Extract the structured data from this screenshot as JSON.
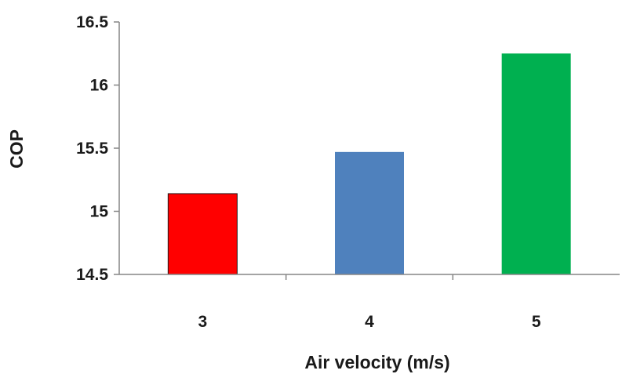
{
  "chart_data": {
    "type": "bar",
    "title": "",
    "xlabel": "Air velocity (m/s)",
    "ylabel": "COP",
    "categories": [
      "3",
      "4",
      "5"
    ],
    "values": [
      15.14,
      15.47,
      16.25
    ],
    "bar_colors": [
      "#ff0000",
      "#4f81bd",
      "#00b050"
    ],
    "ylim": [
      14.5,
      16.5
    ],
    "yticks": [
      "14.5",
      "15",
      "15.5",
      "16",
      "16.5"
    ],
    "grid": false,
    "legend": "none"
  }
}
